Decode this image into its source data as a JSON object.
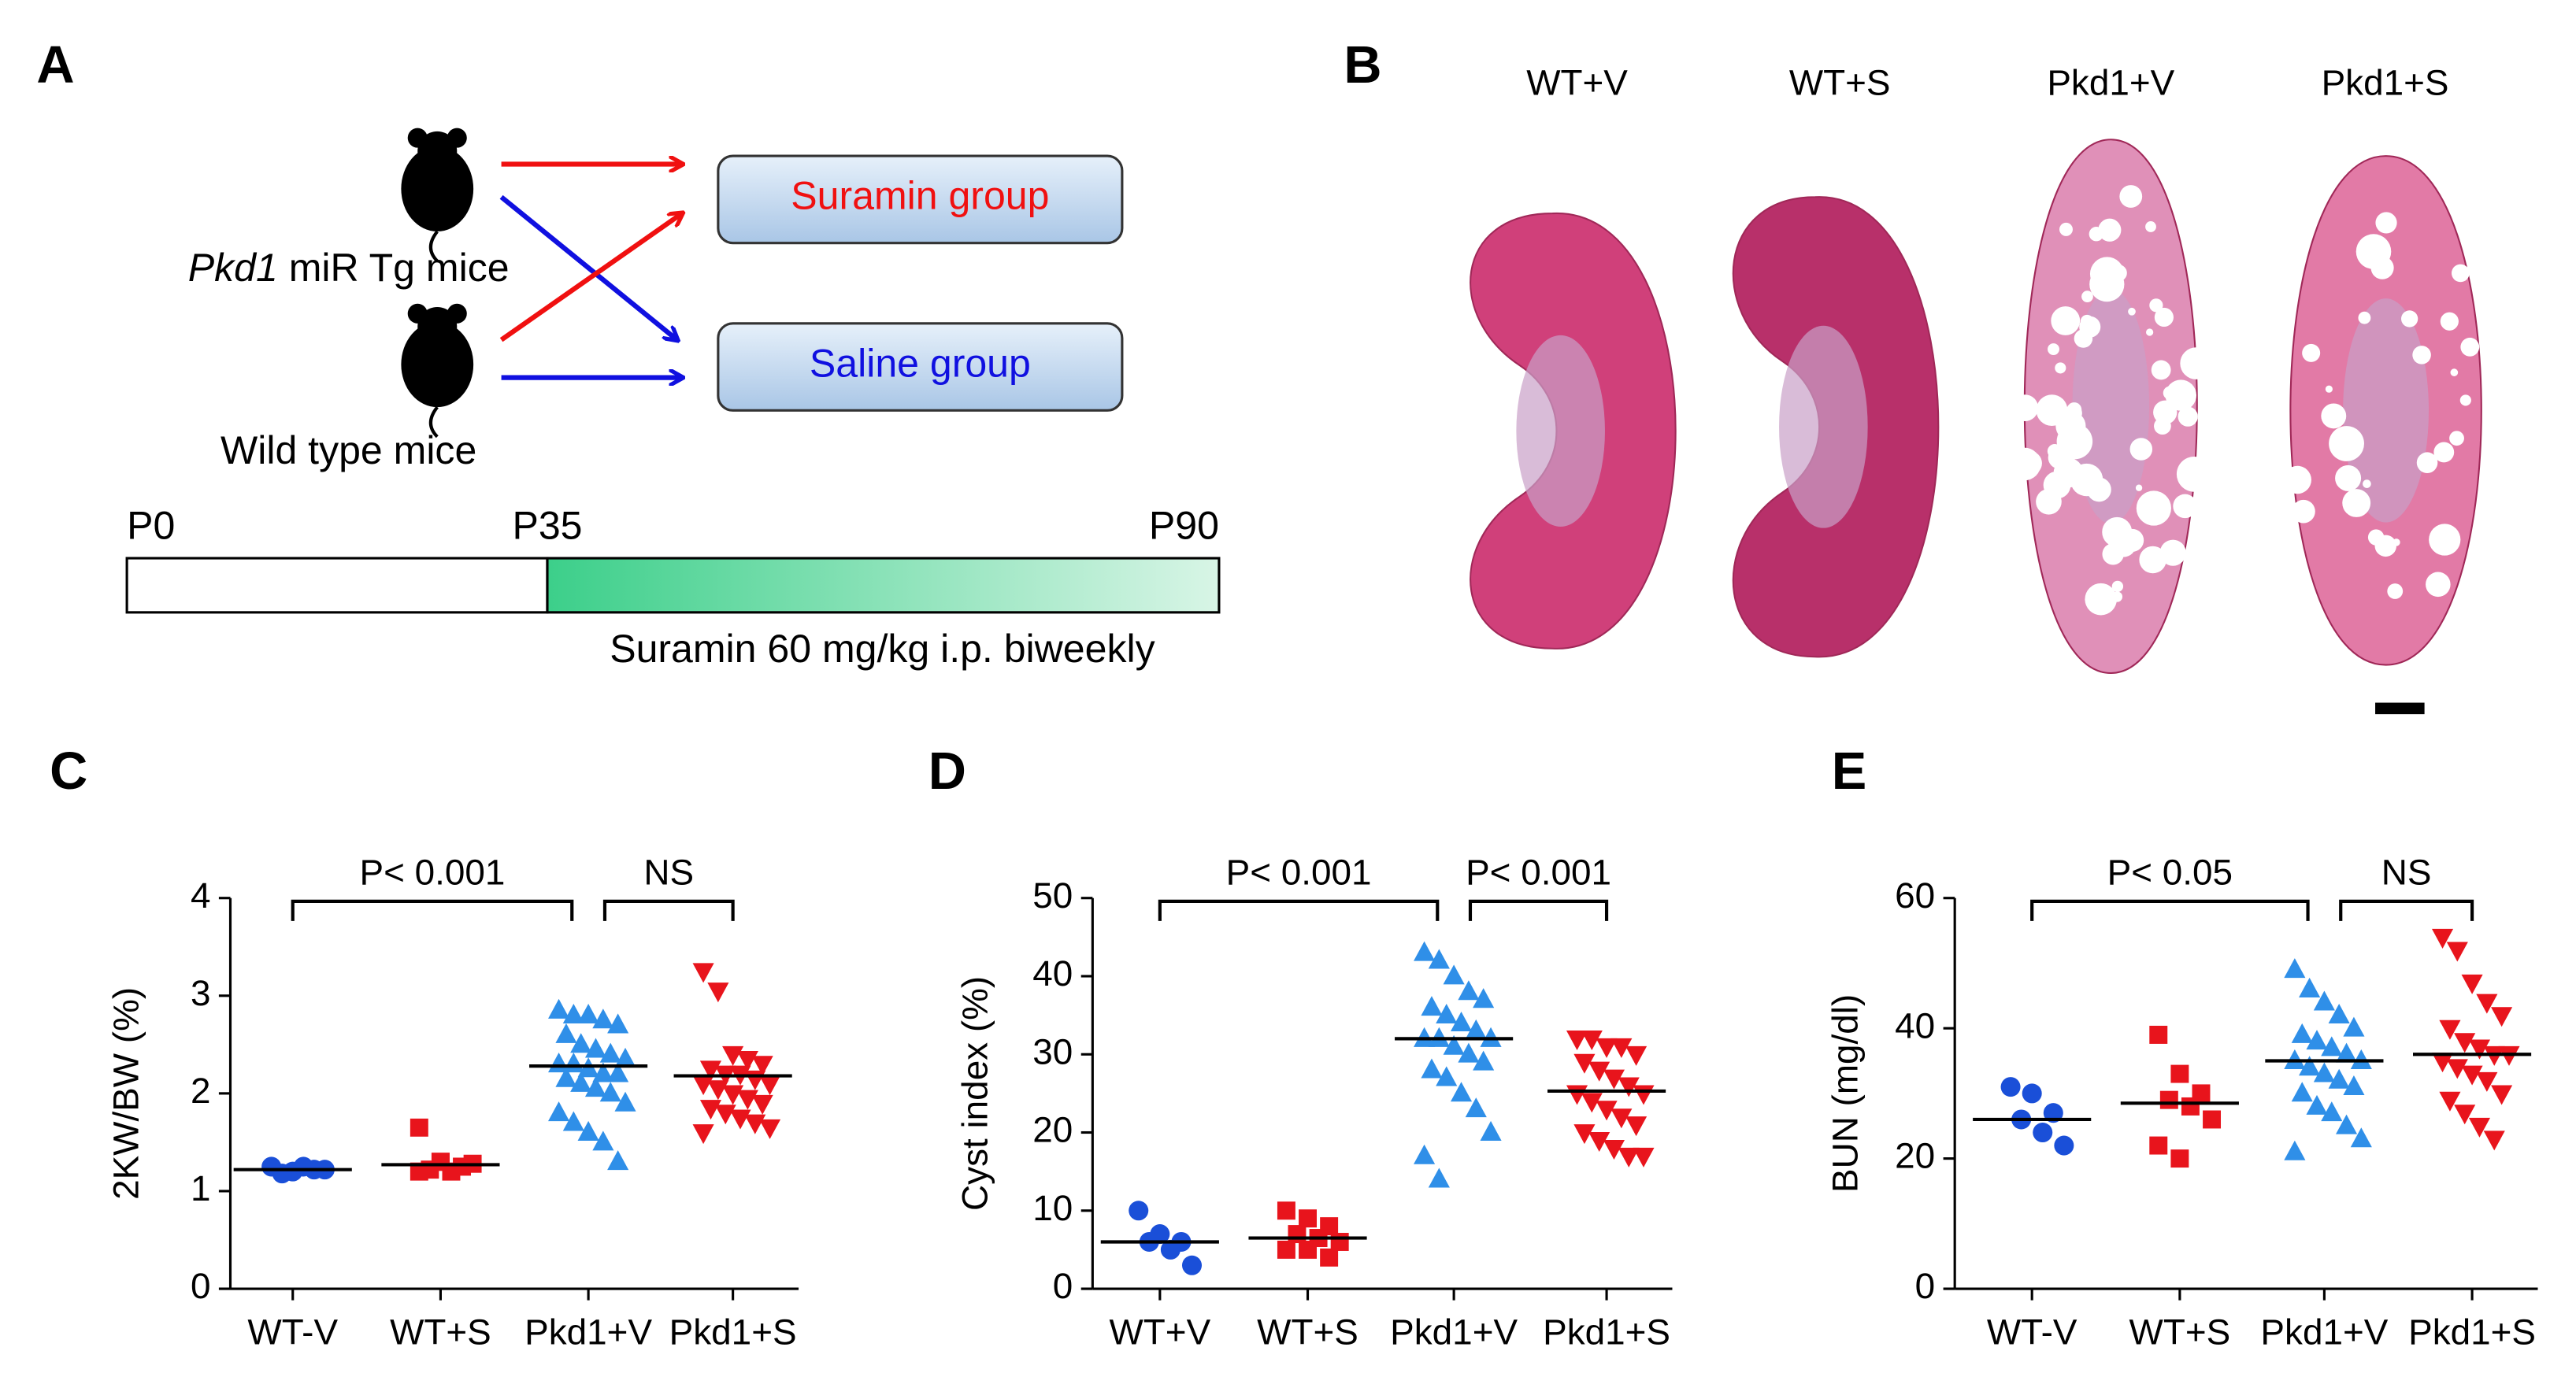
{
  "panel_a": {
    "label": "A",
    "tg_mice_italic": "Pkd1",
    "tg_mice": "miR Tg mice",
    "wt_mice": "Wild type mice",
    "groups": [
      "Suramin group",
      "Saline group"
    ],
    "timeline": [
      "P0",
      "P35",
      "P90"
    ],
    "treatment": "Suramin 60 mg/kg i.p. biweekly"
  },
  "panel_b": {
    "label": "B",
    "columns": [
      "WT+V",
      "WT+S",
      "Pkd1+V",
      "Pkd1+S"
    ]
  },
  "chart_data": [
    {
      "type": "dot",
      "label": "C",
      "ylabel": "2KW/BW (%)",
      "categories": [
        "WT-V",
        "WT+S",
        "Pkd1+V",
        "Pkd1+S"
      ],
      "colors": [
        "#1a4fd8",
        "#e8141c",
        "#2f8fe8",
        "#e8141c"
      ],
      "markers": [
        "circle",
        "square",
        "triangle-up",
        "triangle-down"
      ],
      "values": [
        [
          1.25,
          1.2,
          1.22,
          1.18,
          1.25,
          1.22
        ],
        [
          1.65,
          1.3,
          1.25,
          1.22,
          1.2,
          1.28,
          1.2,
          1.3
        ],
        [
          2.85,
          2.8,
          2.8,
          2.75,
          2.7,
          2.6,
          2.5,
          2.45,
          2.4,
          2.35,
          2.3,
          2.3,
          2.25,
          2.2,
          2.2,
          2.15,
          2.1,
          2.05,
          2.0,
          1.9,
          1.8,
          1.7,
          1.6,
          1.5,
          1.3
        ],
        [
          3.25,
          3.05,
          2.4,
          2.35,
          2.3,
          2.25,
          2.2,
          2.2,
          2.15,
          2.1,
          2.1,
          2.05,
          2.0,
          1.95,
          1.9,
          1.85,
          1.8,
          1.75,
          1.7,
          1.65,
          1.6
        ]
      ],
      "medians": [
        1.22,
        1.27,
        2.28,
        2.18
      ],
      "ylim": [
        0,
        4
      ],
      "yticks": [
        0,
        1,
        2,
        3,
        4
      ],
      "comparisons": [
        {
          "from": 0,
          "to": 2,
          "label": "P< 0.001"
        },
        {
          "from": 2,
          "to": 3,
          "label": "NS"
        }
      ]
    },
    {
      "type": "dot",
      "label": "D",
      "ylabel": "Cyst index (%)",
      "categories": [
        "WT+V",
        "WT+S",
        "Pkd1+V",
        "Pkd1+S"
      ],
      "colors": [
        "#1a4fd8",
        "#e8141c",
        "#2f8fe8",
        "#e8141c"
      ],
      "markers": [
        "circle",
        "square",
        "triangle-up",
        "triangle-down"
      ],
      "values": [
        [
          10,
          7,
          6,
          6,
          5,
          3
        ],
        [
          10,
          9,
          8,
          7,
          6.5,
          6,
          5,
          5,
          4
        ],
        [
          43,
          42,
          40,
          38,
          37,
          36,
          35,
          34,
          33,
          32,
          32,
          32,
          31,
          30,
          29,
          28,
          27,
          25,
          23,
          20,
          17,
          14
        ],
        [
          32,
          32,
          31,
          31,
          30,
          29,
          28,
          27,
          26,
          25,
          25,
          24,
          23,
          22,
          21,
          20,
          19,
          18,
          17,
          17
        ]
      ],
      "medians": [
        6,
        6.5,
        32,
        25.3
      ],
      "ylim": [
        0,
        50
      ],
      "yticks": [
        0,
        10,
        20,
        30,
        40,
        50
      ],
      "comparisons": [
        {
          "from": 0,
          "to": 2,
          "label": "P< 0.001"
        },
        {
          "from": 2,
          "to": 3,
          "label": "P< 0.001"
        }
      ]
    },
    {
      "type": "dot",
      "label": "E",
      "ylabel": "BUN (mg/dl)",
      "categories": [
        "WT-V",
        "WT+S",
        "Pkd1+V",
        "Pkd1+S"
      ],
      "colors": [
        "#1a4fd8",
        "#e8141c",
        "#2f8fe8",
        "#e8141c"
      ],
      "markers": [
        "circle",
        "square",
        "triangle-up",
        "triangle-down"
      ],
      "values": [
        [
          31,
          30,
          27,
          26,
          24,
          22
        ],
        [
          39,
          33,
          30,
          29,
          28,
          26,
          22,
          20
        ],
        [
          49,
          46,
          44,
          42,
          40,
          39,
          38,
          37,
          36,
          35,
          35,
          34,
          33,
          32,
          31,
          30,
          28,
          27,
          25,
          23,
          21
        ],
        [
          54,
          52,
          47,
          44,
          42,
          40,
          38,
          37,
          36,
          36,
          35,
          34,
          33,
          32,
          30,
          29,
          27,
          25,
          23
        ]
      ],
      "medians": [
        26,
        28.5,
        35,
        36
      ],
      "ylim": [
        0,
        60
      ],
      "yticks": [
        0,
        20,
        40,
        60
      ],
      "comparisons": [
        {
          "from": 0,
          "to": 2,
          "label": "P< 0.05"
        },
        {
          "from": 2,
          "to": 3,
          "label": "NS"
        }
      ]
    }
  ]
}
